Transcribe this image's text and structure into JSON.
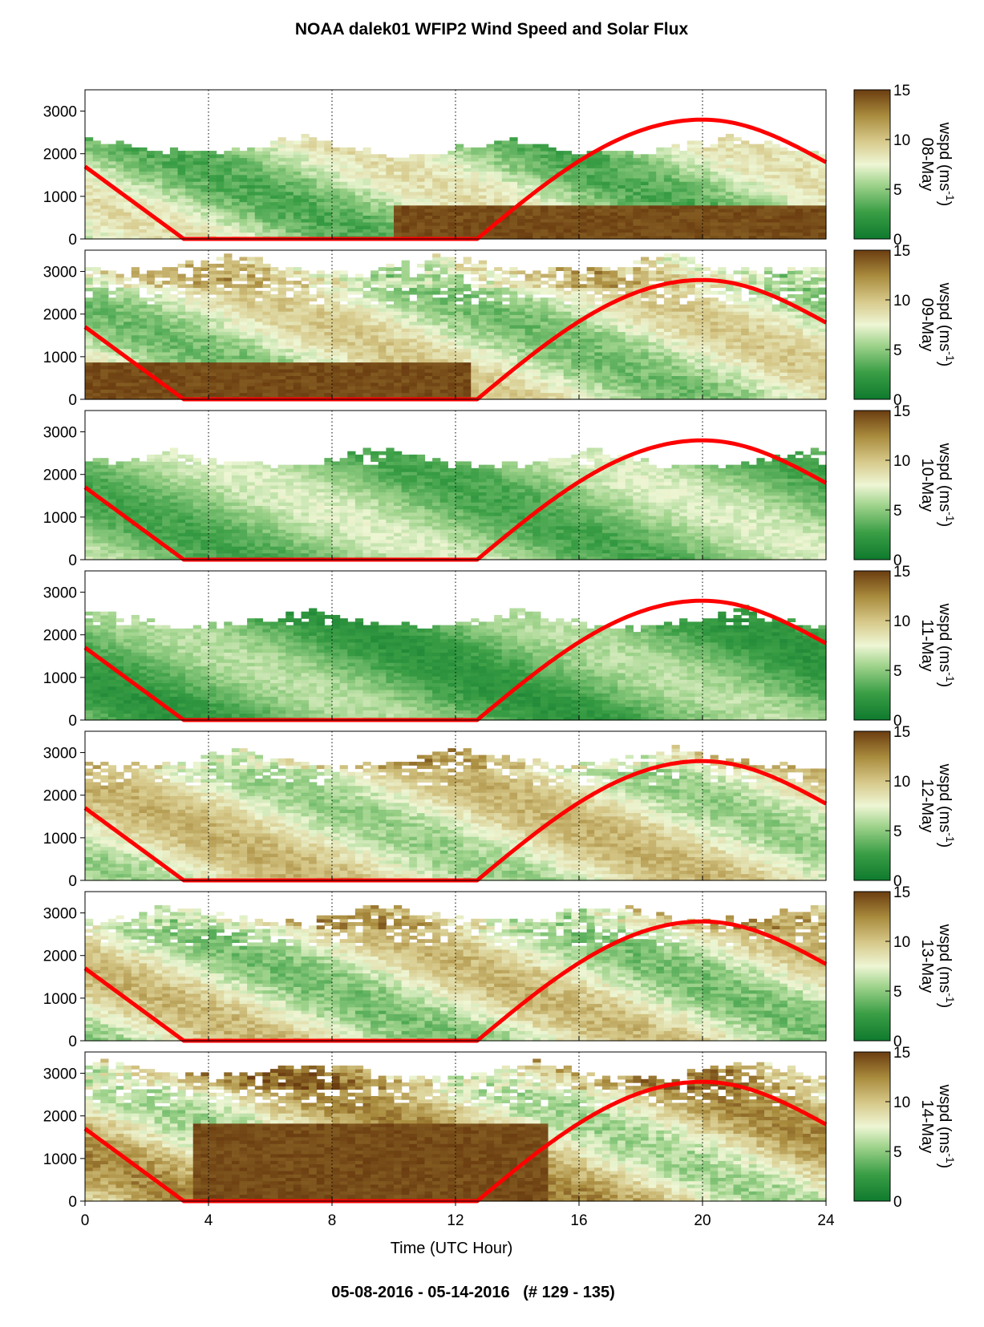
{
  "chart_data": {
    "type": "heatmap",
    "title": "NOAA dalek01 WFIP2 Wind Speed and Solar Flux",
    "footer": "05-08-2016 - 05-14-2016   (# 129 - 135)",
    "xlabel": "Time (UTC Hour)",
    "xlim": [
      0,
      24
    ],
    "xticks": [
      "0",
      "4",
      "8",
      "12",
      "16",
      "20",
      "24"
    ],
    "ylim": [
      0,
      3500
    ],
    "yticks": [
      "0",
      "1000",
      "2000",
      "3000"
    ],
    "colorbar": {
      "range": [
        0,
        15
      ],
      "ticks": [
        "0",
        "5",
        "10",
        "15"
      ],
      "label_line1": "wspd (ms",
      "label_sup": "-1",
      "label_line2": ")",
      "colors": [
        "#0f7a2e",
        "#3a9e45",
        "#9dd28a",
        "#eef6d4",
        "#d6c889",
        "#a88a3c",
        "#6b3d10"
      ]
    },
    "vertical_gridlines": [
      4,
      8,
      12,
      16,
      20
    ],
    "solar_flux_curve": {
      "color": "#ff0000",
      "sunset_descent": [
        [
          0,
          1700
        ],
        [
          3.2,
          0
        ]
      ],
      "zero_from_to": [
        3.2,
        12.7
      ],
      "day_arc": {
        "start": 12.7,
        "peak": 20,
        "peak_value": 2800,
        "end": 24,
        "end_value": 1800
      }
    },
    "panels": [
      {
        "day": "08-May",
        "low_level_jet": {
          "from": 10,
          "to": 24,
          "top": 800
        },
        "upper_cutoff": 2500
      },
      {
        "day": "09-May",
        "low_level_jet": {
          "from": 0,
          "to": 12.5,
          "top": 900
        },
        "upper_cutoff": 3500
      },
      {
        "day": "10-May",
        "low_level_jet": null,
        "upper_cutoff": 2700
      },
      {
        "day": "11-May",
        "low_level_jet": null,
        "upper_cutoff": 2700
      },
      {
        "day": "12-May",
        "low_level_jet": null,
        "upper_cutoff": 3200
      },
      {
        "day": "13-May",
        "low_level_jet": null,
        "upper_cutoff": 3300
      },
      {
        "day": "14-May",
        "low_level_jet": {
          "from": 3.5,
          "to": 15,
          "top": 1800
        },
        "upper_cutoff": 3400
      }
    ]
  }
}
